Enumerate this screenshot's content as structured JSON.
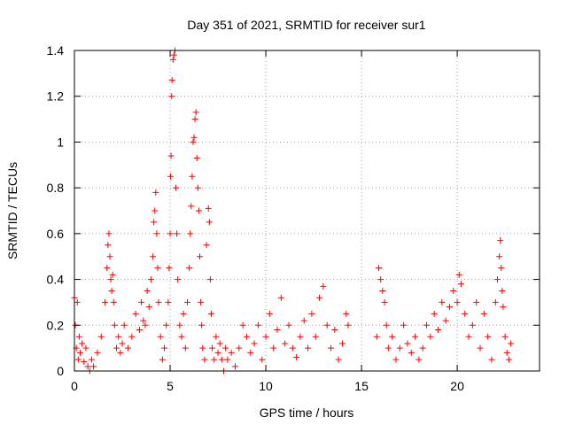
{
  "chart_data": {
    "type": "scatter",
    "title": "Day 351 of 2021, SRMTID for receiver sur1",
    "xlabel": "GPS time / hours",
    "ylabel": "SRMTID / TECUs",
    "xlim": [
      0,
      24.3
    ],
    "ylim": [
      0,
      1.4
    ],
    "xticks": [
      0,
      5,
      10,
      15,
      20
    ],
    "yticks": [
      0,
      0.2,
      0.4,
      0.6,
      0.8,
      1,
      1.2,
      1.4
    ],
    "xtick_labels": [
      "0",
      "5",
      "10",
      "15",
      "20"
    ],
    "ytick_labels": [
      "0",
      "0.2",
      "0.4",
      "0.6",
      "0.8",
      "1",
      "1.2",
      "1.4"
    ],
    "grid": true,
    "marker": "+",
    "series": [
      {
        "name": "sur1",
        "color": "#ff0000",
        "x": [
          0.0,
          0.05,
          0.1,
          0.15,
          0.2,
          0.25,
          0.3,
          0.4,
          0.5,
          0.6,
          0.7,
          0.8,
          0.9,
          1.0,
          1.2,
          1.4,
          1.6,
          1.7,
          1.75,
          1.8,
          1.85,
          1.9,
          1.95,
          2.0,
          2.05,
          2.1,
          2.2,
          2.3,
          2.4,
          2.5,
          2.6,
          2.8,
          3.0,
          3.2,
          3.4,
          3.5,
          3.6,
          3.7,
          3.8,
          3.9,
          4.0,
          4.1,
          4.15,
          4.2,
          4.25,
          4.3,
          4.35,
          4.4,
          4.5,
          4.6,
          4.7,
          4.8,
          4.9,
          4.95,
          5.0,
          5.02,
          5.05,
          5.08,
          5.1,
          5.15,
          5.2,
          5.25,
          5.3,
          5.35,
          5.4,
          5.5,
          5.6,
          5.7,
          5.8,
          5.9,
          6.0,
          6.05,
          6.1,
          6.15,
          6.2,
          6.25,
          6.3,
          6.35,
          6.4,
          6.45,
          6.5,
          6.55,
          6.6,
          6.65,
          6.7,
          6.8,
          6.9,
          7.0,
          7.05,
          7.1,
          7.15,
          7.2,
          7.3,
          7.4,
          7.5,
          7.6,
          7.7,
          7.8,
          7.9,
          8.0,
          8.2,
          8.4,
          8.6,
          8.8,
          9.0,
          9.2,
          9.4,
          9.6,
          9.8,
          10.0,
          10.2,
          10.4,
          10.6,
          10.8,
          11.0,
          11.2,
          11.4,
          11.6,
          11.8,
          12.0,
          12.2,
          12.4,
          12.6,
          12.8,
          13.0,
          13.2,
          13.4,
          13.6,
          13.8,
          14.0,
          14.2,
          14.3,
          15.8,
          15.9,
          16.0,
          16.1,
          16.2,
          16.3,
          16.4,
          16.6,
          16.8,
          17.0,
          17.2,
          17.4,
          17.6,
          17.8,
          18.0,
          18.2,
          18.4,
          18.6,
          18.8,
          19.0,
          19.2,
          19.4,
          19.6,
          19.8,
          20.0,
          20.1,
          20.2,
          20.4,
          20.6,
          20.8,
          21.0,
          21.2,
          21.4,
          21.6,
          21.8,
          22.0,
          22.1,
          22.2,
          22.25,
          22.3,
          22.35,
          22.4,
          22.5,
          22.6,
          22.7,
          22.8
        ],
        "y": [
          0.32,
          0.2,
          0.1,
          0.3,
          0.05,
          0.15,
          0.08,
          0.12,
          0.04,
          0.1,
          0.02,
          0.0,
          0.05,
          0.02,
          0.08,
          0.15,
          0.3,
          0.45,
          0.55,
          0.6,
          0.5,
          0.4,
          0.35,
          0.42,
          0.3,
          0.2,
          0.1,
          0.15,
          0.08,
          0.12,
          0.2,
          0.1,
          0.15,
          0.25,
          0.18,
          0.3,
          0.22,
          0.2,
          0.35,
          0.28,
          0.4,
          0.5,
          0.65,
          0.7,
          0.78,
          0.6,
          0.45,
          0.3,
          0.15,
          0.05,
          0.1,
          0.2,
          0.3,
          0.45,
          0.6,
          0.85,
          0.94,
          1.2,
          1.27,
          1.36,
          1.38,
          1.4,
          0.8,
          0.6,
          0.4,
          0.2,
          0.15,
          0.25,
          0.1,
          0.3,
          0.45,
          0.6,
          0.72,
          0.85,
          1.0,
          1.02,
          1.1,
          1.13,
          0.93,
          0.8,
          0.7,
          0.5,
          0.3,
          0.2,
          0.1,
          0.05,
          0.55,
          0.71,
          0.65,
          0.4,
          0.25,
          0.1,
          0.05,
          0.15,
          0.08,
          0.12,
          0.05,
          0.0,
          0.1,
          0.05,
          0.08,
          0.02,
          0.1,
          0.2,
          0.15,
          0.08,
          0.12,
          0.2,
          0.05,
          0.15,
          0.25,
          0.1,
          0.18,
          0.32,
          0.12,
          0.2,
          0.1,
          0.06,
          0.15,
          0.22,
          0.1,
          0.25,
          0.15,
          0.32,
          0.37,
          0.2,
          0.1,
          0.18,
          0.05,
          0.12,
          0.25,
          0.2,
          0.15,
          0.45,
          0.4,
          0.35,
          0.3,
          0.2,
          0.1,
          0.15,
          0.05,
          0.1,
          0.2,
          0.12,
          0.08,
          0.15,
          0.05,
          0.1,
          0.2,
          0.15,
          0.25,
          0.18,
          0.3,
          0.22,
          0.28,
          0.35,
          0.3,
          0.42,
          0.38,
          0.25,
          0.15,
          0.2,
          0.3,
          0.1,
          0.25,
          0.15,
          0.05,
          0.3,
          0.4,
          0.5,
          0.57,
          0.45,
          0.35,
          0.28,
          0.15,
          0.08,
          0.05,
          0.12
        ]
      }
    ]
  }
}
